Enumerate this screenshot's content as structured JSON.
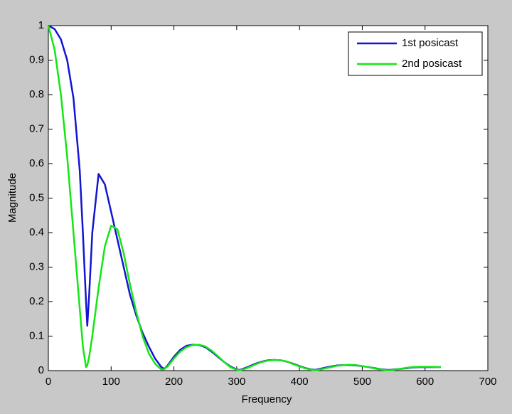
{
  "chart_data": {
    "type": "line",
    "xlabel": "Frequency",
    "ylabel": "Magnitude",
    "x": [
      0,
      10,
      20,
      30,
      40,
      50,
      55,
      60,
      62,
      65,
      70,
      80,
      90,
      100,
      110,
      120,
      130,
      140,
      150,
      160,
      170,
      180,
      185,
      190,
      200,
      210,
      220,
      230,
      240,
      250,
      260,
      270,
      280,
      290,
      300,
      305,
      310,
      320,
      330,
      340,
      350,
      360,
      370,
      380,
      390,
      400,
      410,
      420,
      425,
      430,
      440,
      450,
      460,
      470,
      480,
      490,
      500,
      510,
      520,
      530,
      540,
      545,
      550,
      560,
      570,
      580,
      590,
      600,
      610,
      620,
      625
    ],
    "series": [
      {
        "name": "1st posicast",
        "color": "#1414d2",
        "values": [
          1,
          0.99,
          0.96,
          0.9,
          0.79,
          0.58,
          0.4,
          0.2,
          0.13,
          0.22,
          0.4,
          0.57,
          0.54,
          0.46,
          0.38,
          0.3,
          0.22,
          0.16,
          0.11,
          0.07,
          0.035,
          0.01,
          0.005,
          0.015,
          0.04,
          0.06,
          0.072,
          0.075,
          0.074,
          0.068,
          0.055,
          0.04,
          0.025,
          0.012,
          0.003,
          0.002,
          0.005,
          0.012,
          0.02,
          0.026,
          0.03,
          0.031,
          0.03,
          0.026,
          0.02,
          0.013,
          0.007,
          0.003,
          0.002,
          0.004,
          0.008,
          0.012,
          0.015,
          0.016,
          0.016,
          0.015,
          0.013,
          0.01,
          0.007,
          0.004,
          0.002,
          0.002,
          0.003,
          0.005,
          0.007,
          0.009,
          0.01,
          0.01,
          0.01,
          0.01,
          0.01
        ]
      },
      {
        "name": "2nd posicast",
        "color": "#14e614",
        "values": [
          1,
          0.93,
          0.8,
          0.62,
          0.4,
          0.18,
          0.07,
          0.01,
          0.015,
          0.04,
          0.1,
          0.24,
          0.36,
          0.42,
          0.41,
          0.34,
          0.25,
          0.17,
          0.1,
          0.05,
          0.02,
          0.003,
          0.005,
          0.012,
          0.035,
          0.055,
          0.068,
          0.074,
          0.075,
          0.07,
          0.058,
          0.042,
          0.025,
          0.01,
          0.002,
          0.001,
          0.003,
          0.01,
          0.018,
          0.025,
          0.029,
          0.031,
          0.03,
          0.026,
          0.019,
          0.012,
          0.006,
          0.002,
          0.001,
          0.002,
          0.006,
          0.01,
          0.014,
          0.016,
          0.017,
          0.016,
          0.013,
          0.01,
          0.006,
          0.003,
          0.001,
          0.001,
          0.002,
          0.005,
          0.008,
          0.01,
          0.011,
          0.011,
          0.011,
          0.01,
          0.01
        ]
      }
    ],
    "xlim": [
      0,
      700
    ],
    "xticks": [
      0,
      100,
      200,
      300,
      400,
      500,
      600,
      700
    ],
    "ylim": [
      0,
      1
    ],
    "yticks": [
      0,
      0.1,
      0.2,
      0.3,
      0.4,
      0.5,
      0.6,
      0.7,
      0.8,
      0.9,
      1
    ],
    "legend": "top-right"
  }
}
